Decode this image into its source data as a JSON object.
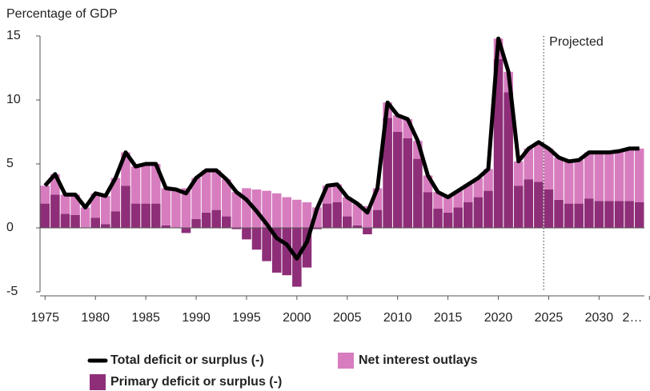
{
  "chart_data": {
    "type": "bar",
    "title": "Percentage of GDP",
    "annotation": "Projected",
    "projection_start": 2024.5,
    "x": [
      1975,
      1976,
      1977,
      1978,
      1979,
      1980,
      1981,
      1982,
      1983,
      1984,
      1985,
      1986,
      1987,
      1988,
      1989,
      1990,
      1991,
      1992,
      1993,
      1994,
      1995,
      1996,
      1997,
      1998,
      1999,
      2000,
      2001,
      2002,
      2003,
      2004,
      2005,
      2006,
      2007,
      2008,
      2009,
      2010,
      2011,
      2012,
      2013,
      2014,
      2015,
      2016,
      2017,
      2018,
      2019,
      2020,
      2021,
      2022,
      2023,
      2024,
      2025,
      2026,
      2027,
      2028,
      2029,
      2030,
      2031,
      2032,
      2033,
      2034
    ],
    "xlim": [
      1974.5,
      2034.5
    ],
    "xticks": [
      1975,
      1980,
      1985,
      1990,
      1995,
      2000,
      2005,
      2010,
      2015,
      2020,
      2025,
      2030,
      {
        "value": 2035,
        "label": "2…"
      }
    ],
    "ylim": [
      -5,
      15
    ],
    "yticks": [
      -5,
      0,
      5,
      10,
      15
    ],
    "series": [
      {
        "name": "Primary deficit or surplus (-)",
        "kind": "bar",
        "color": "#8e2e78",
        "values": [
          1.9,
          2.6,
          1.1,
          1.0,
          0.0,
          0.8,
          0.3,
          1.3,
          3.3,
          1.9,
          1.9,
          1.9,
          0.2,
          0.0,
          -0.4,
          0.7,
          1.2,
          1.4,
          0.9,
          -0.1,
          -0.9,
          -1.7,
          -2.6,
          -3.5,
          -3.7,
          -4.6,
          -3.1,
          -0.1,
          1.9,
          2.0,
          0.9,
          0.2,
          -0.5,
          1.4,
          8.6,
          7.5,
          7.0,
          5.4,
          2.8,
          1.5,
          1.2,
          1.6,
          2.0,
          2.4,
          2.9,
          13.2,
          10.6,
          3.3,
          3.8,
          3.6,
          3.0,
          2.2,
          1.9,
          1.9,
          2.3,
          2.1,
          2.1,
          2.1,
          2.1,
          2.0
        ]
      },
      {
        "name": "Net interest outlays",
        "kind": "bar",
        "color": "#d77dbf",
        "values": [
          1.4,
          1.6,
          1.5,
          1.6,
          1.6,
          1.9,
          2.2,
          2.6,
          2.6,
          2.9,
          3.1,
          3.1,
          2.9,
          3.0,
          3.1,
          3.2,
          3.3,
          3.1,
          2.9,
          2.8,
          3.1,
          3.0,
          2.9,
          2.7,
          2.4,
          2.2,
          2.0,
          1.6,
          1.4,
          1.4,
          1.5,
          1.7,
          1.7,
          1.7,
          1.2,
          1.3,
          1.5,
          1.4,
          1.3,
          1.3,
          1.2,
          1.3,
          1.4,
          1.5,
          1.7,
          1.6,
          1.6,
          1.9,
          2.4,
          3.1,
          3.2,
          3.3,
          3.3,
          3.4,
          3.6,
          3.8,
          3.8,
          3.9,
          4.1,
          4.2
        ]
      },
      {
        "name": "Total deficit or surplus (-)",
        "kind": "line",
        "color": "#000000",
        "values": [
          3.3,
          4.2,
          2.6,
          2.6,
          1.6,
          2.7,
          2.5,
          3.9,
          5.9,
          4.8,
          5.0,
          5.0,
          3.1,
          3.0,
          2.7,
          3.9,
          4.5,
          4.5,
          3.8,
          2.8,
          2.2,
          1.3,
          0.3,
          -0.8,
          -1.3,
          -2.4,
          -1.1,
          1.5,
          3.3,
          3.4,
          2.4,
          1.9,
          1.2,
          3.1,
          9.8,
          8.8,
          8.5,
          6.8,
          4.1,
          2.8,
          2.4,
          2.9,
          3.4,
          3.9,
          4.6,
          14.8,
          12.2,
          5.2,
          6.2,
          6.7,
          6.2,
          5.5,
          5.2,
          5.3,
          5.9,
          5.9,
          5.9,
          6.0,
          6.2,
          6.2
        ]
      }
    ]
  }
}
